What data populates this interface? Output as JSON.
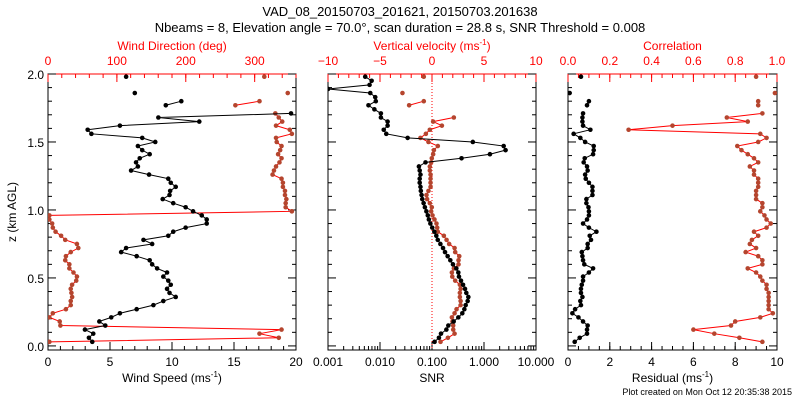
{
  "title": {
    "line1": "VAD_08_20150703_201621, 20150703.201638",
    "line2": "Nbeams = 8, Elevation angle = 70.0°, scan duration = 28.8 s, SNR Threshold = 0.008"
  },
  "footer": "Plot created on Mon Oct 12 20:35:38 2015",
  "colors": {
    "primary": "#000000",
    "secondary_line": "#ff0000",
    "secondary_marker": "#b5452e",
    "secondary_axis": "#ff0000"
  },
  "chart_data": [
    {
      "type": "line",
      "ylabel": "z (km AGL)",
      "ylim": [
        -0.03,
        2.0
      ],
      "yticks": [
        {
          "v": 0,
          "label": "0.0"
        },
        {
          "v": 0.5,
          "label": "0.5"
        },
        {
          "v": 1,
          "label": "1.0"
        },
        {
          "v": 1.5,
          "label": "1.5"
        },
        {
          "v": 2,
          "label": "2.0"
        }
      ],
      "z_km": [
        0.03,
        0.06,
        0.09,
        0.12,
        0.15,
        0.18,
        0.21,
        0.24,
        0.27,
        0.3,
        0.33,
        0.36,
        0.39,
        0.42,
        0.45,
        0.48,
        0.51,
        0.54,
        0.57,
        0.6,
        0.63,
        0.66,
        0.69,
        0.72,
        0.75,
        0.78,
        0.81,
        0.84,
        0.87,
        0.9,
        0.93,
        0.96,
        0.99,
        1.02,
        1.05,
        1.08,
        1.11,
        1.14,
        1.17,
        1.2,
        1.23,
        1.26,
        1.29,
        1.32,
        1.35,
        1.38,
        1.41,
        1.44,
        1.47,
        1.5,
        1.53,
        1.56,
        1.59,
        1.62,
        1.65,
        1.68,
        1.71,
        1.74,
        1.77,
        1.8,
        1.83,
        1.86,
        1.89,
        1.92,
        1.95,
        1.98
      ],
      "panels": [
        {
          "bottom_axis": {
            "label": "Wind Speed (ms",
            "sup": "-1",
            "close": ")",
            "scale": "linear",
            "lim": [
              0,
              20
            ],
            "minor": 1,
            "ticks": [
              {
                "v": 0,
                "label": "0"
              },
              {
                "v": 5,
                "label": "5"
              },
              {
                "v": 10,
                "label": "10"
              },
              {
                "v": 15,
                "label": "15"
              },
              {
                "v": 20,
                "label": "20"
              }
            ]
          },
          "top_axis": {
            "label": "Wind Direction (deg)",
            "sup": "",
            "close": "",
            "scale": "linear",
            "lim": [
              0,
              360
            ],
            "minor": 20,
            "ticks": [
              {
                "v": 0,
                "label": "0"
              },
              {
                "v": 100,
                "label": "100"
              },
              {
                "v": 200,
                "label": "200"
              },
              {
                "v": 300,
                "label": "300"
              }
            ]
          },
          "primary": {
            "name": "Wind Speed",
            "values": [
              3.57,
              3.3,
              3.65,
              2.98,
              4.62,
              4.14,
              5.1,
              5.8,
              7.15,
              8.5,
              9.3,
              10.3,
              9.8,
              9.6,
              9.9,
              9.7,
              9.3,
              9.6,
              8.8,
              8.4,
              8.2,
              7.15,
              5.9,
              6.3,
              8.4,
              7.7,
              9.7,
              10.1,
              11.1,
              12.8,
              12.8,
              12.4,
              11.7,
              11.1,
              10.1,
              9.25,
              9.8,
              9.85,
              10.3,
              9.9,
              9.7,
              8.15,
              6.7,
              7.25,
              7.1,
              7.4,
              8.2,
              7.6,
              7.25,
              8.65,
              7.6,
              3.5,
              3.2,
              5.8,
              12.2,
              8.9,
              19.6,
              null,
              9.5,
              10.75,
              null,
              7.0,
              null,
              null,
              null,
              6.3
            ]
          },
          "secondary": {
            "name": "Wind Direction",
            "values": [
              2,
              335,
              307,
              339,
              18,
              17,
              2,
              7,
              26,
              33,
              33,
              35,
              34,
              33,
              35,
              41,
              42,
              37,
              31,
              31,
              25,
              26,
              33,
              44,
              42,
              25,
              19,
              11,
              7,
              6,
              2,
              2,
              354,
              345,
              345,
              346,
              344,
              344,
              341,
              341,
              339,
              326,
              328,
              331,
              336,
              339,
              334,
              337,
              339,
              332,
              331,
              354,
              351,
              331,
              340,
              335,
              330,
              null,
              272,
              307,
              null,
              348,
              null,
              null,
              null,
              314
            ]
          },
          "zero_line": false
        },
        {
          "bottom_axis": {
            "label": "SNR",
            "sup": "",
            "close": "",
            "scale": "log",
            "lim": [
              0.001,
              10
            ],
            "ticks": [
              {
                "v": 0.001,
                "label": "0.001"
              },
              {
                "v": 0.01,
                "label": "0.010"
              },
              {
                "v": 0.1,
                "label": "0.100"
              },
              {
                "v": 1,
                "label": "1.000"
              },
              {
                "v": 10,
                "label": "10.000"
              }
            ]
          },
          "top_axis": {
            "label": "Vertical velocity (ms",
            "sup": "-1",
            "close": ")",
            "scale": "linear",
            "lim": [
              -10,
              10
            ],
            "minor": 1,
            "ticks": [
              {
                "v": -10,
                "label": "−10"
              },
              {
                "v": -5,
                "label": "−5"
              },
              {
                "v": 0,
                "label": "0"
              },
              {
                "v": 5,
                "label": "5"
              },
              {
                "v": 10,
                "label": "10"
              }
            ]
          },
          "primary": {
            "name": "SNR",
            "values": [
              0.112,
              0.136,
              0.149,
              0.189,
              0.206,
              0.261,
              0.321,
              0.383,
              0.419,
              0.444,
              0.485,
              0.5,
              0.457,
              0.431,
              0.395,
              0.361,
              0.33,
              0.321,
              0.294,
              0.253,
              0.225,
              0.2,
              0.178,
              0.163,
              0.145,
              0.129,
              0.121,
              0.111,
              0.101,
              0.093,
              0.087,
              0.083,
              0.078,
              0.073,
              0.069,
              0.065,
              0.063,
              0.061,
              0.06,
              0.058,
              0.058,
              0.06,
              0.058,
              0.056,
              0.075,
              0.37,
              1.3,
              2.6,
              2.39,
              0.61,
              0.034,
              0.0132,
              0.0118,
              0.014,
              0.014,
              0.0104,
              0.0104,
              0.0078,
              0.006,
              0.0083,
              0.0081,
              0.0065,
              0.001,
              0.0063,
              0.0069,
              0.0052
            ]
          },
          "secondary": {
            "name": "Vertical velocity",
            "values": [
              0.82,
              1.53,
              2.17,
              2.04,
              2.04,
              1.97,
              1.91,
              2.17,
              2.36,
              2.75,
              2.75,
              2.68,
              2.68,
              2.75,
              2.68,
              2.23,
              1.95,
              1.91,
              2.1,
              2.55,
              2.55,
              2.62,
              2.23,
              2.17,
              1.65,
              1.4,
              1.14,
              0.56,
              0.5,
              0.43,
              0.24,
              0.05,
              -0.08,
              -0.02,
              -0.21,
              -0.47,
              -0.53,
              -0.34,
              -0.14,
              -0.14,
              -0.14,
              -0.14,
              -0.21,
              -0.21,
              -0.08,
              -0.02,
              0.11,
              0.18,
              0.56,
              -0.34,
              -1.11,
              -0.59,
              -0.21,
              0.95,
              0.11,
              2.1,
              null,
              null,
              -2.2,
              -0.79,
              null,
              -2.84,
              null,
              null,
              null,
              -0.79
            ]
          },
          "zero_line": true
        },
        {
          "bottom_axis": {
            "label": "Residual (ms",
            "sup": "-1",
            "close": ")",
            "scale": "linear",
            "lim": [
              0,
              10
            ],
            "minor": 0.5,
            "ticks": [
              {
                "v": 0,
                "label": "0"
              },
              {
                "v": 2,
                "label": "2"
              },
              {
                "v": 4,
                "label": "4"
              },
              {
                "v": 6,
                "label": "6"
              },
              {
                "v": 8,
                "label": "8"
              },
              {
                "v": 10,
                "label": "10"
              }
            ]
          },
          "top_axis": {
            "label": "Correlation",
            "sup": "",
            "close": "",
            "scale": "linear",
            "lim": [
              0,
              1
            ],
            "minor": 0.05,
            "ticks": [
              {
                "v": 0,
                "label": "0.0"
              },
              {
                "v": 0.2,
                "label": "0.2"
              },
              {
                "v": 0.4,
                "label": "0.4"
              },
              {
                "v": 0.6,
                "label": "0.6"
              },
              {
                "v": 0.8,
                "label": "0.8"
              },
              {
                "v": 1,
                "label": "1.0"
              }
            ]
          },
          "primary": {
            "name": "Residual",
            "values": [
              0.32,
              0.56,
              0.91,
              0.91,
              0.94,
              0.72,
              0.5,
              0.21,
              0.34,
              0.62,
              0.59,
              0.69,
              0.62,
              0.62,
              0.66,
              0.72,
              0.72,
              1.0,
              1.2,
              0.78,
              0.72,
              0.69,
              0.66,
              0.94,
              0.94,
              1.1,
              1.04,
              1.36,
              1.0,
              0.72,
              0.91,
              1.0,
              1.0,
              0.98,
              0.88,
              0.88,
              1.17,
              1.17,
              1.17,
              1.0,
              0.85,
              0.82,
              0.94,
              0.91,
              0.75,
              0.8,
              1.2,
              1.23,
              1.23,
              0.82,
              0.59,
              0.27,
              1.07,
              0.72,
              0.69,
              0.69,
              0.72,
              null,
              0.91,
              1.0,
              null,
              0.08,
              null,
              null,
              null,
              0.62
            ]
          },
          "secondary": {
            "name": "Correlation",
            "values": [
              0.93,
              0.82,
              0.7,
              0.6,
              0.78,
              0.8,
              0.92,
              0.98,
              0.96,
              0.96,
              0.96,
              0.96,
              0.96,
              0.95,
              0.95,
              0.93,
              0.92,
              0.9,
              0.86,
              0.93,
              0.93,
              0.91,
              0.85,
              0.9,
              0.87,
              0.88,
              0.91,
              0.89,
              0.95,
              0.97,
              0.95,
              0.94,
              0.92,
              0.93,
              0.93,
              0.9,
              0.9,
              0.9,
              0.91,
              0.91,
              0.91,
              0.89,
              0.89,
              0.87,
              0.91,
              0.89,
              0.86,
              0.83,
              0.81,
              0.91,
              0.95,
              0.92,
              0.29,
              0.5,
              0.86,
              0.76,
              0.93,
              null,
              0.91,
              0.91,
              null,
              0.99,
              null,
              null,
              null,
              0.9
            ]
          },
          "zero_line": false
        }
      ]
    }
  ]
}
